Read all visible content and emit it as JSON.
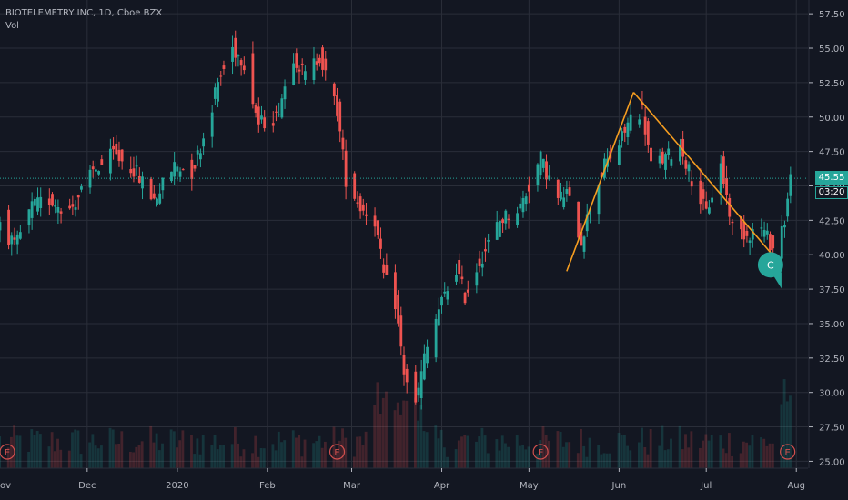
{
  "legend": {
    "symbol_line": "BIOTELEMETRY INC, 1D, Cboe BZX",
    "volume_label": "Vol"
  },
  "current_price": {
    "value": 45.55,
    "label": "45.55",
    "countdown": "03:20"
  },
  "colors": {
    "background": "#131722",
    "up": "#26a69a",
    "down": "#ef5350",
    "trendline": "#f59d20",
    "grid": "#2a2e39",
    "axis_text": "#b2b5be",
    "earnings_marker": "#d2504e",
    "callout": "#26a69a"
  },
  "chart_data": {
    "type": "candlestick",
    "title": "",
    "xlabel": "",
    "ylabel": "",
    "timeframe": "1D",
    "exchange": "Cboe BZX",
    "ylim": [
      24.5,
      58.5
    ],
    "y_ticks": [
      "25.00",
      "27.50",
      "30.00",
      "32.50",
      "35.00",
      "37.50",
      "40.00",
      "42.50",
      "45.00",
      "47.50",
      "50.00",
      "52.50",
      "55.00",
      "57.50"
    ],
    "x_ticks": [
      "Dec",
      "2020",
      "Feb",
      "Mar",
      "Apr",
      "May",
      "Jun",
      "Jul",
      "Aug"
    ],
    "x_tick_dates": [
      "2019-12-01",
      "2020-01-01",
      "2020-02-01",
      "2020-03-01",
      "2020-04-01",
      "2020-05-01",
      "2020-06-01",
      "2020-07-01",
      "2020-08-01"
    ],
    "x_partial_label": "ov",
    "x_range": [
      "2019-11-01",
      "2020-08-05"
    ],
    "grid": true,
    "close_path": [
      [
        "2019-11-01",
        42.5
      ],
      [
        "2019-11-06",
        40.5
      ],
      [
        "2019-11-12",
        43.5
      ],
      [
        "2019-11-18",
        44.0
      ],
      [
        "2019-11-25",
        43.2
      ],
      [
        "2019-12-03",
        46.0
      ],
      [
        "2019-12-10",
        47.3
      ],
      [
        "2019-12-17",
        46.2
      ],
      [
        "2019-12-24",
        44.0
      ],
      [
        "2019-12-31",
        46.5
      ],
      [
        "2020-01-06",
        46.0
      ],
      [
        "2020-01-10",
        48.5
      ],
      [
        "2020-01-15",
        52.5
      ],
      [
        "2020-01-20",
        55.0
      ],
      [
        "2020-01-24",
        54.0
      ],
      [
        "2020-01-29",
        49.5
      ],
      [
        "2020-02-04",
        50.0
      ],
      [
        "2020-02-10",
        54.5
      ],
      [
        "2020-02-14",
        53.0
      ],
      [
        "2020-02-19",
        54.5
      ],
      [
        "2020-02-21",
        53.0
      ],
      [
        "2020-02-25",
        50.5
      ],
      [
        "2020-02-28",
        45.5
      ],
      [
        "2020-03-04",
        43.5
      ],
      [
        "2020-03-09",
        42.5
      ],
      [
        "2020-03-12",
        38.5
      ],
      [
        "2020-03-16",
        36.5
      ],
      [
        "2020-03-19",
        31.5
      ],
      [
        "2020-03-23",
        29.0
      ],
      [
        "2020-03-26",
        32.5
      ],
      [
        "2020-03-31",
        36.0
      ],
      [
        "2020-04-06",
        39.0
      ],
      [
        "2020-04-09",
        37.0
      ],
      [
        "2020-04-14",
        39.5
      ],
      [
        "2020-04-21",
        42.5
      ],
      [
        "2020-04-28",
        43.5
      ],
      [
        "2020-05-05",
        47.0
      ],
      [
        "2020-05-11",
        44.0
      ],
      [
        "2020-05-14",
        44.5
      ],
      [
        "2020-05-19",
        41.0
      ],
      [
        "2020-05-22",
        43.5
      ],
      [
        "2020-05-27",
        46.5
      ],
      [
        "2020-06-01",
        48.0
      ],
      [
        "2020-06-05",
        50.0
      ],
      [
        "2020-06-09",
        50.5
      ],
      [
        "2020-06-12",
        46.5
      ],
      [
        "2020-06-17",
        47.0
      ],
      [
        "2020-06-22",
        48.0
      ],
      [
        "2020-06-26",
        45.5
      ],
      [
        "2020-07-01",
        43.0
      ],
      [
        "2020-07-06",
        46.5
      ],
      [
        "2020-07-10",
        42.0
      ],
      [
        "2020-07-15",
        41.5
      ],
      [
        "2020-07-20",
        42.0
      ],
      [
        "2020-07-24",
        40.5
      ],
      [
        "2020-07-28",
        42.5
      ],
      [
        "2020-07-30",
        45.55
      ]
    ],
    "trendlines": [
      {
        "from": [
          "2020-05-14",
          38.8
        ],
        "to": [
          "2020-06-06",
          51.8
        ]
      },
      {
        "from": [
          "2020-06-06",
          51.8
        ],
        "to": [
          "2020-07-27",
          39.2
        ]
      }
    ],
    "earnings_markers": {
      "label": "E",
      "dates": [
        "2019-11-01",
        "2020-02-25",
        "2020-05-05",
        "2020-07-29"
      ]
    },
    "annotation": {
      "label": "C",
      "date": "2020-07-20",
      "value": 39.0
    },
    "volume": {
      "label": "Vol",
      "relative_max": 1.0
    }
  }
}
